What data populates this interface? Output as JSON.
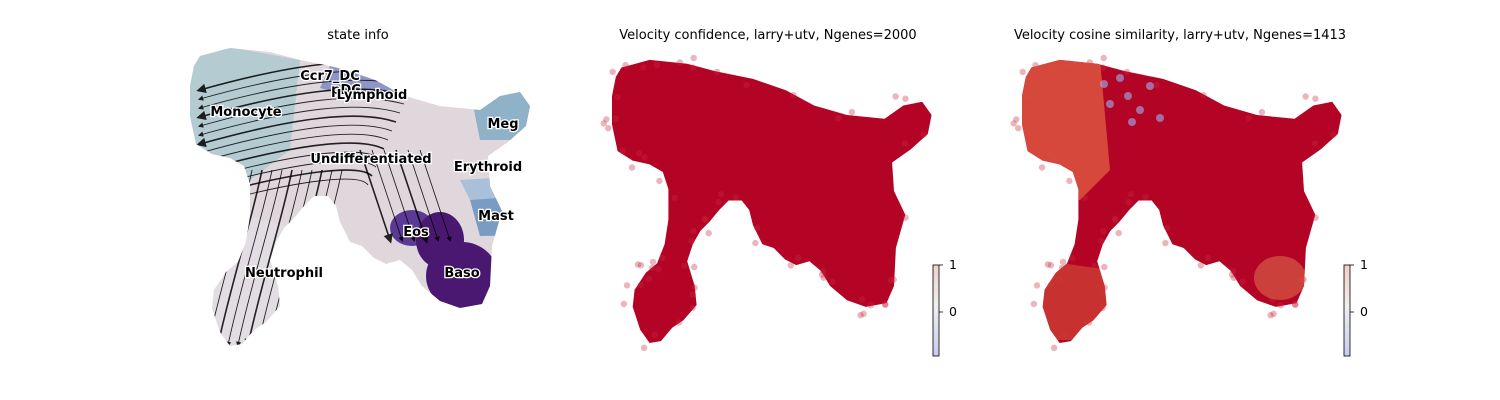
{
  "chart_data": [
    {
      "type": "scatter",
      "title": "state info",
      "states": [
        {
          "name": "Ccr7_DC",
          "color": "#6a51a3"
        },
        {
          "name": "pDC",
          "color": "#5e3c99"
        },
        {
          "name": "Lymphoid",
          "color": "#7b83c4"
        },
        {
          "name": "Monocyte",
          "color": "#b3cbd1"
        },
        {
          "name": "Meg",
          "color": "#8fb2c9"
        },
        {
          "name": "Undifferentiated",
          "color": "#e0d7dc"
        },
        {
          "name": "Erythroid",
          "color": "#a9c0d8"
        },
        {
          "name": "Mast",
          "color": "#7a9cc2"
        },
        {
          "name": "Eos",
          "color": "#5b3a95"
        },
        {
          "name": "Baso",
          "color": "#4a1870"
        },
        {
          "name": "Neutrophil",
          "color": "#e2dde2"
        }
      ],
      "streamlines": "black velocity stream arrows over embedding"
    },
    {
      "type": "scatter",
      "title": "Velocity confidence, larry+utv, Ngenes=2000",
      "point_color": "#b40426",
      "colorbar": {
        "ticks": [
          "1",
          "0"
        ],
        "colormap": "coolwarm"
      }
    },
    {
      "type": "scatter",
      "title": "Velocity cosine similarity, larry+utv, Ngenes=1413",
      "point_color": "#b40426",
      "colorbar": {
        "ticks": [
          "1",
          "0"
        ],
        "colormap": "coolwarm"
      }
    }
  ]
}
